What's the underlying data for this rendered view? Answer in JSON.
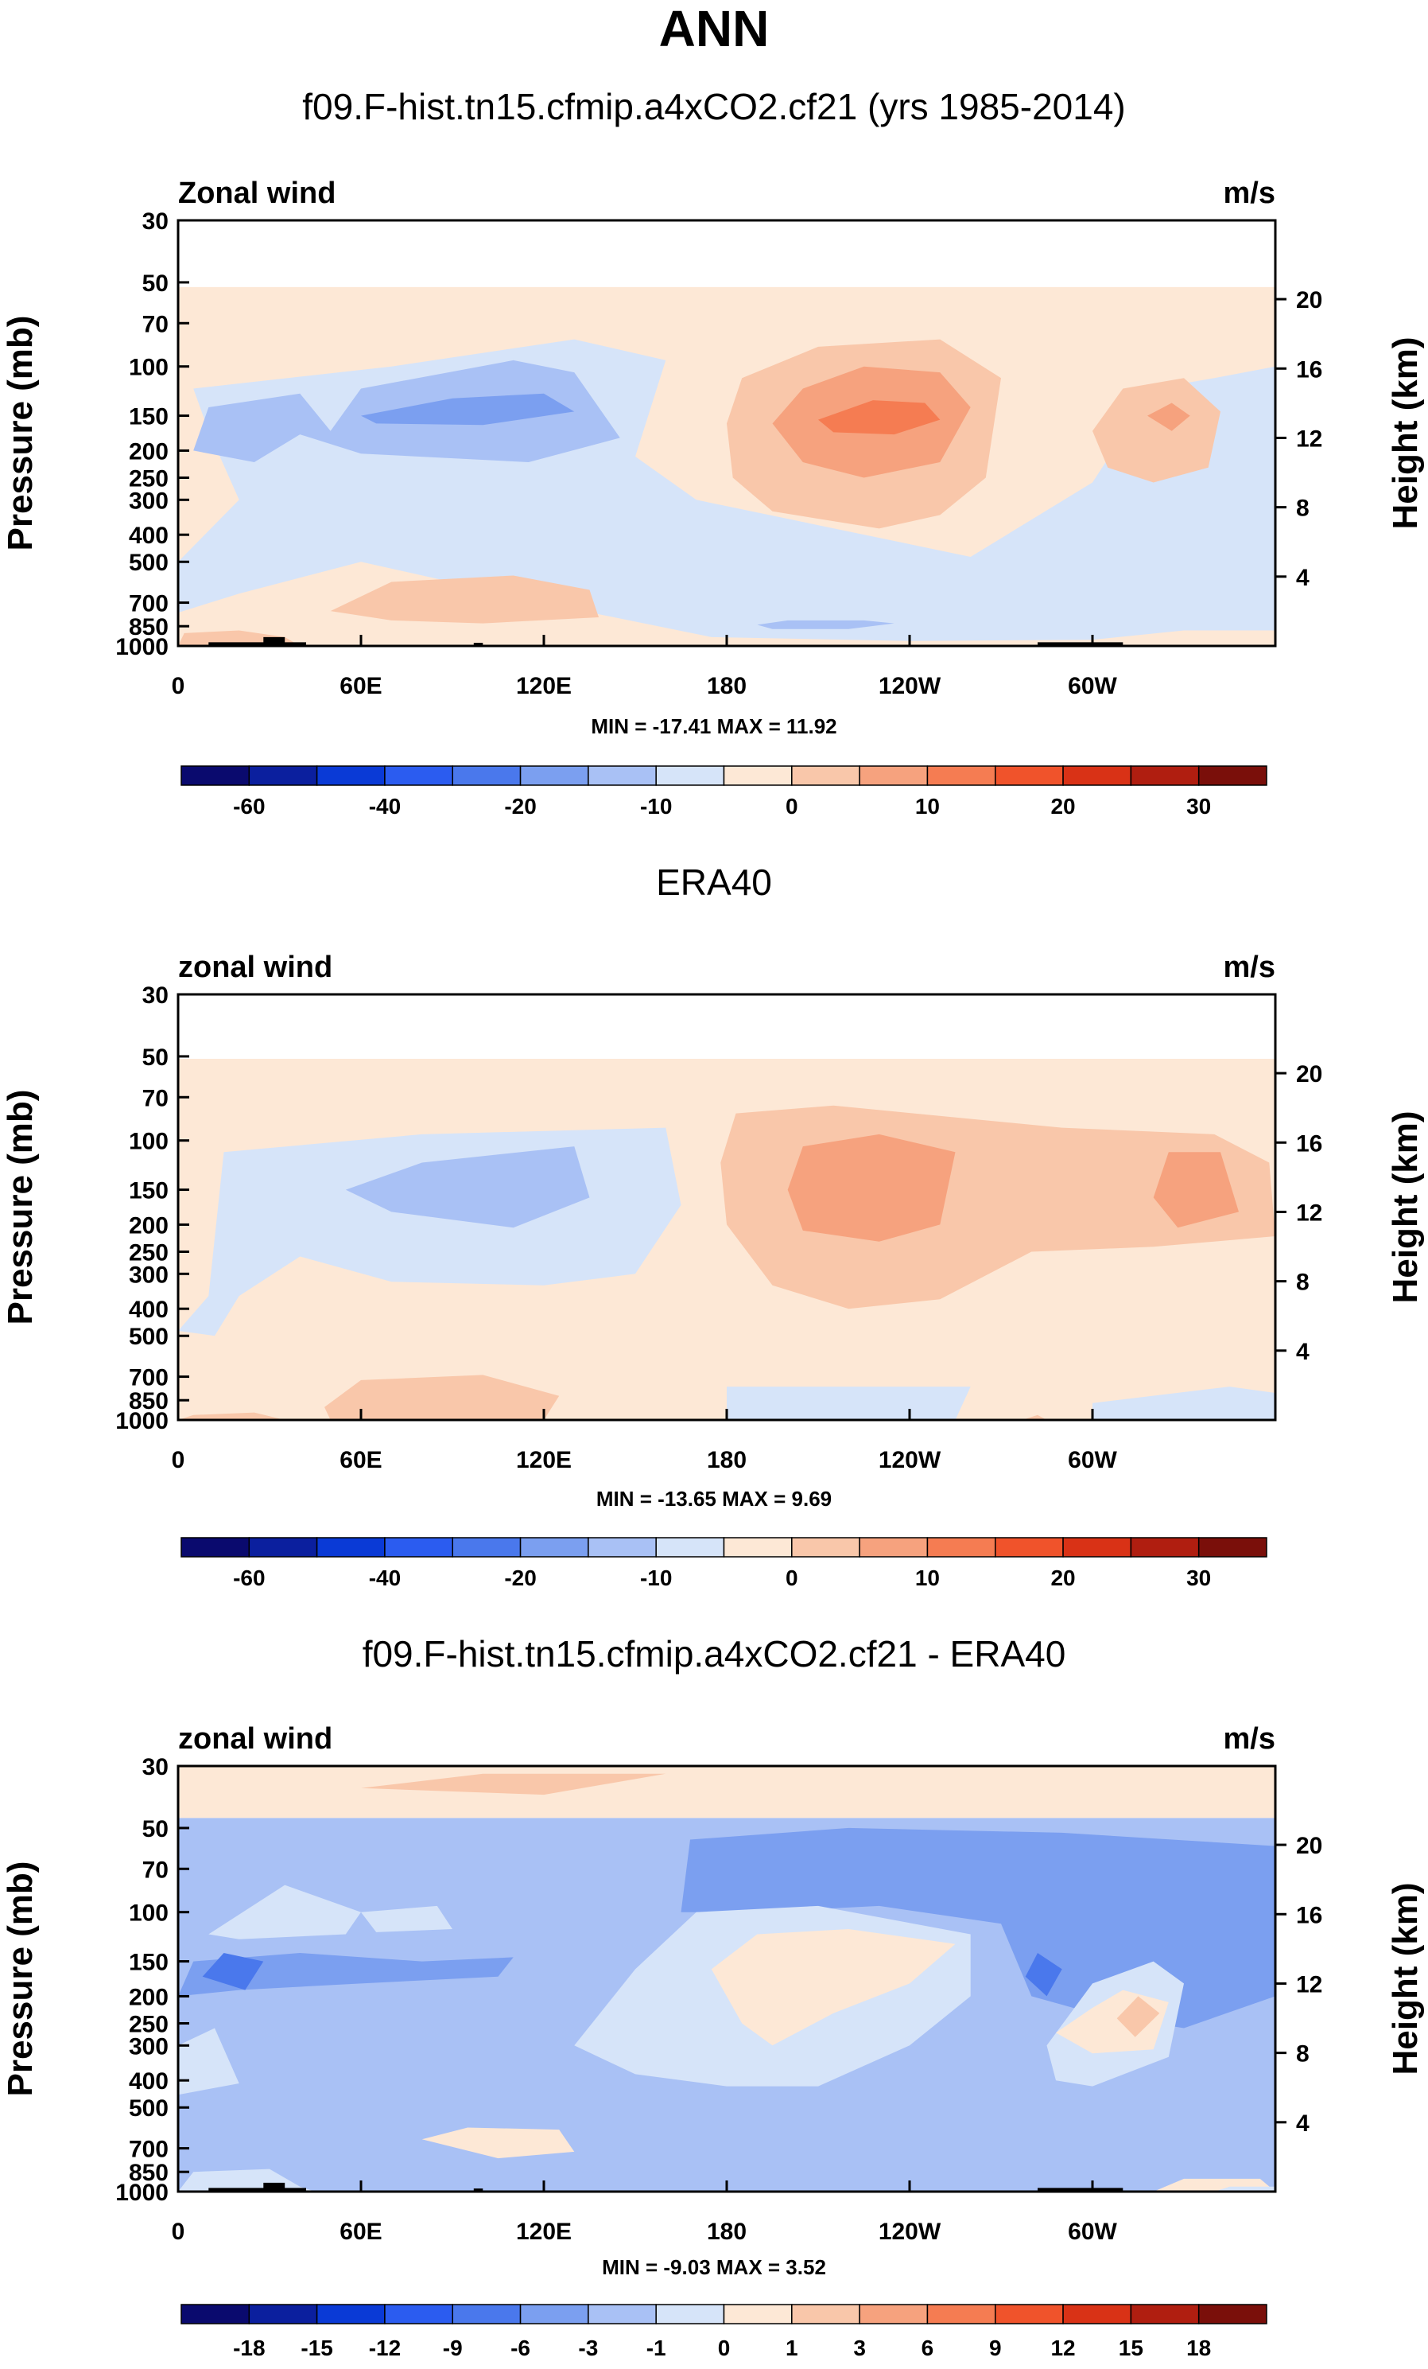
{
  "figure": {
    "title": "ANN",
    "min_label": "MIN",
    "max_label": "MAX"
  },
  "chart_data": [
    {
      "type": "contour",
      "title": "f09.F-hist.tn15.cfmip.a4xCO2.cf21 (yrs 1985-2014)",
      "variable_label": "Zonal wind",
      "units": "m/s",
      "ylabel": "Pressure (mb)",
      "y2label": "Height (km)",
      "x_ticks": [
        "0",
        "60E",
        "120E",
        "180",
        "120W",
        "60W"
      ],
      "x_tick_lon": [
        0,
        60,
        120,
        180,
        240,
        300
      ],
      "xlim": [
        0,
        360
      ],
      "pressure_levels": [
        30,
        50,
        70,
        100,
        150,
        200,
        250,
        300,
        400,
        500,
        700,
        850,
        1000
      ],
      "ylim": [
        1000,
        30
      ],
      "height_ticks": [
        4,
        8,
        12,
        16,
        20
      ],
      "min": -17.41,
      "max": 11.92,
      "colorbar_labels": [
        "-60",
        "-40",
        "-20",
        "-10",
        "0",
        "10",
        "20",
        "30"
      ],
      "colorbar_levels": [
        -70,
        -60,
        -50,
        -40,
        -30,
        -20,
        -15,
        -10,
        -5,
        0,
        5,
        10,
        15,
        20,
        25,
        30
      ]
    },
    {
      "type": "contour",
      "title": "ERA40",
      "variable_label": "zonal wind",
      "units": "m/s",
      "ylabel": "Pressure (mb)",
      "y2label": "Height (km)",
      "x_ticks": [
        "0",
        "60E",
        "120E",
        "180",
        "120W",
        "60W"
      ],
      "x_tick_lon": [
        0,
        60,
        120,
        180,
        240,
        300
      ],
      "xlim": [
        0,
        360
      ],
      "pressure_levels": [
        30,
        50,
        70,
        100,
        150,
        200,
        250,
        300,
        400,
        500,
        700,
        850,
        1000
      ],
      "ylim": [
        1000,
        30
      ],
      "height_ticks": [
        4,
        8,
        12,
        16,
        20
      ],
      "min": -13.65,
      "max": 9.69,
      "colorbar_labels": [
        "-60",
        "-40",
        "-20",
        "-10",
        "0",
        "10",
        "20",
        "30"
      ],
      "colorbar_levels": [
        -70,
        -60,
        -50,
        -40,
        -30,
        -20,
        -15,
        -10,
        -5,
        0,
        5,
        10,
        15,
        20,
        25,
        30
      ]
    },
    {
      "type": "contour",
      "title": "f09.F-hist.tn15.cfmip.a4xCO2.cf21 - ERA40",
      "variable_label": "zonal wind",
      "units": "m/s",
      "ylabel": "Pressure (mb)",
      "y2label": "Height (km)",
      "x_ticks": [
        "0",
        "60E",
        "120E",
        "180",
        "120W",
        "60W"
      ],
      "x_tick_lon": [
        0,
        60,
        120,
        180,
        240,
        300
      ],
      "xlim": [
        0,
        360
      ],
      "pressure_levels": [
        30,
        50,
        70,
        100,
        150,
        200,
        250,
        300,
        400,
        500,
        700,
        850,
        1000
      ],
      "ylim": [
        1000,
        30
      ],
      "height_ticks": [
        4,
        8,
        12,
        16,
        20
      ],
      "min": -9.03,
      "max": 3.52,
      "colorbar_labels": [
        "-18",
        "-15",
        "-12",
        "-9",
        "-6",
        "-3",
        "-1",
        "0",
        "1",
        "3",
        "6",
        "9",
        "12",
        "15",
        "18"
      ],
      "colorbar_levels": [
        -21,
        -18,
        -15,
        -12,
        -9,
        -6,
        -3,
        -1,
        0,
        1,
        3,
        6,
        9,
        12,
        15,
        18
      ]
    }
  ],
  "colors": {
    "palette": [
      "#0a0a6e",
      "#0b1f9e",
      "#0a3ad6",
      "#2b5cf0",
      "#4a78ec",
      "#7b9ff0",
      "#a9c1f5",
      "#d6e4f9",
      "#fde8d6",
      "#f9c7aa",
      "#f6a27e",
      "#f57c52",
      "#f0532b",
      "#d93216",
      "#b01e10",
      "#7a0f0a"
    ],
    "topography": "#000000"
  }
}
